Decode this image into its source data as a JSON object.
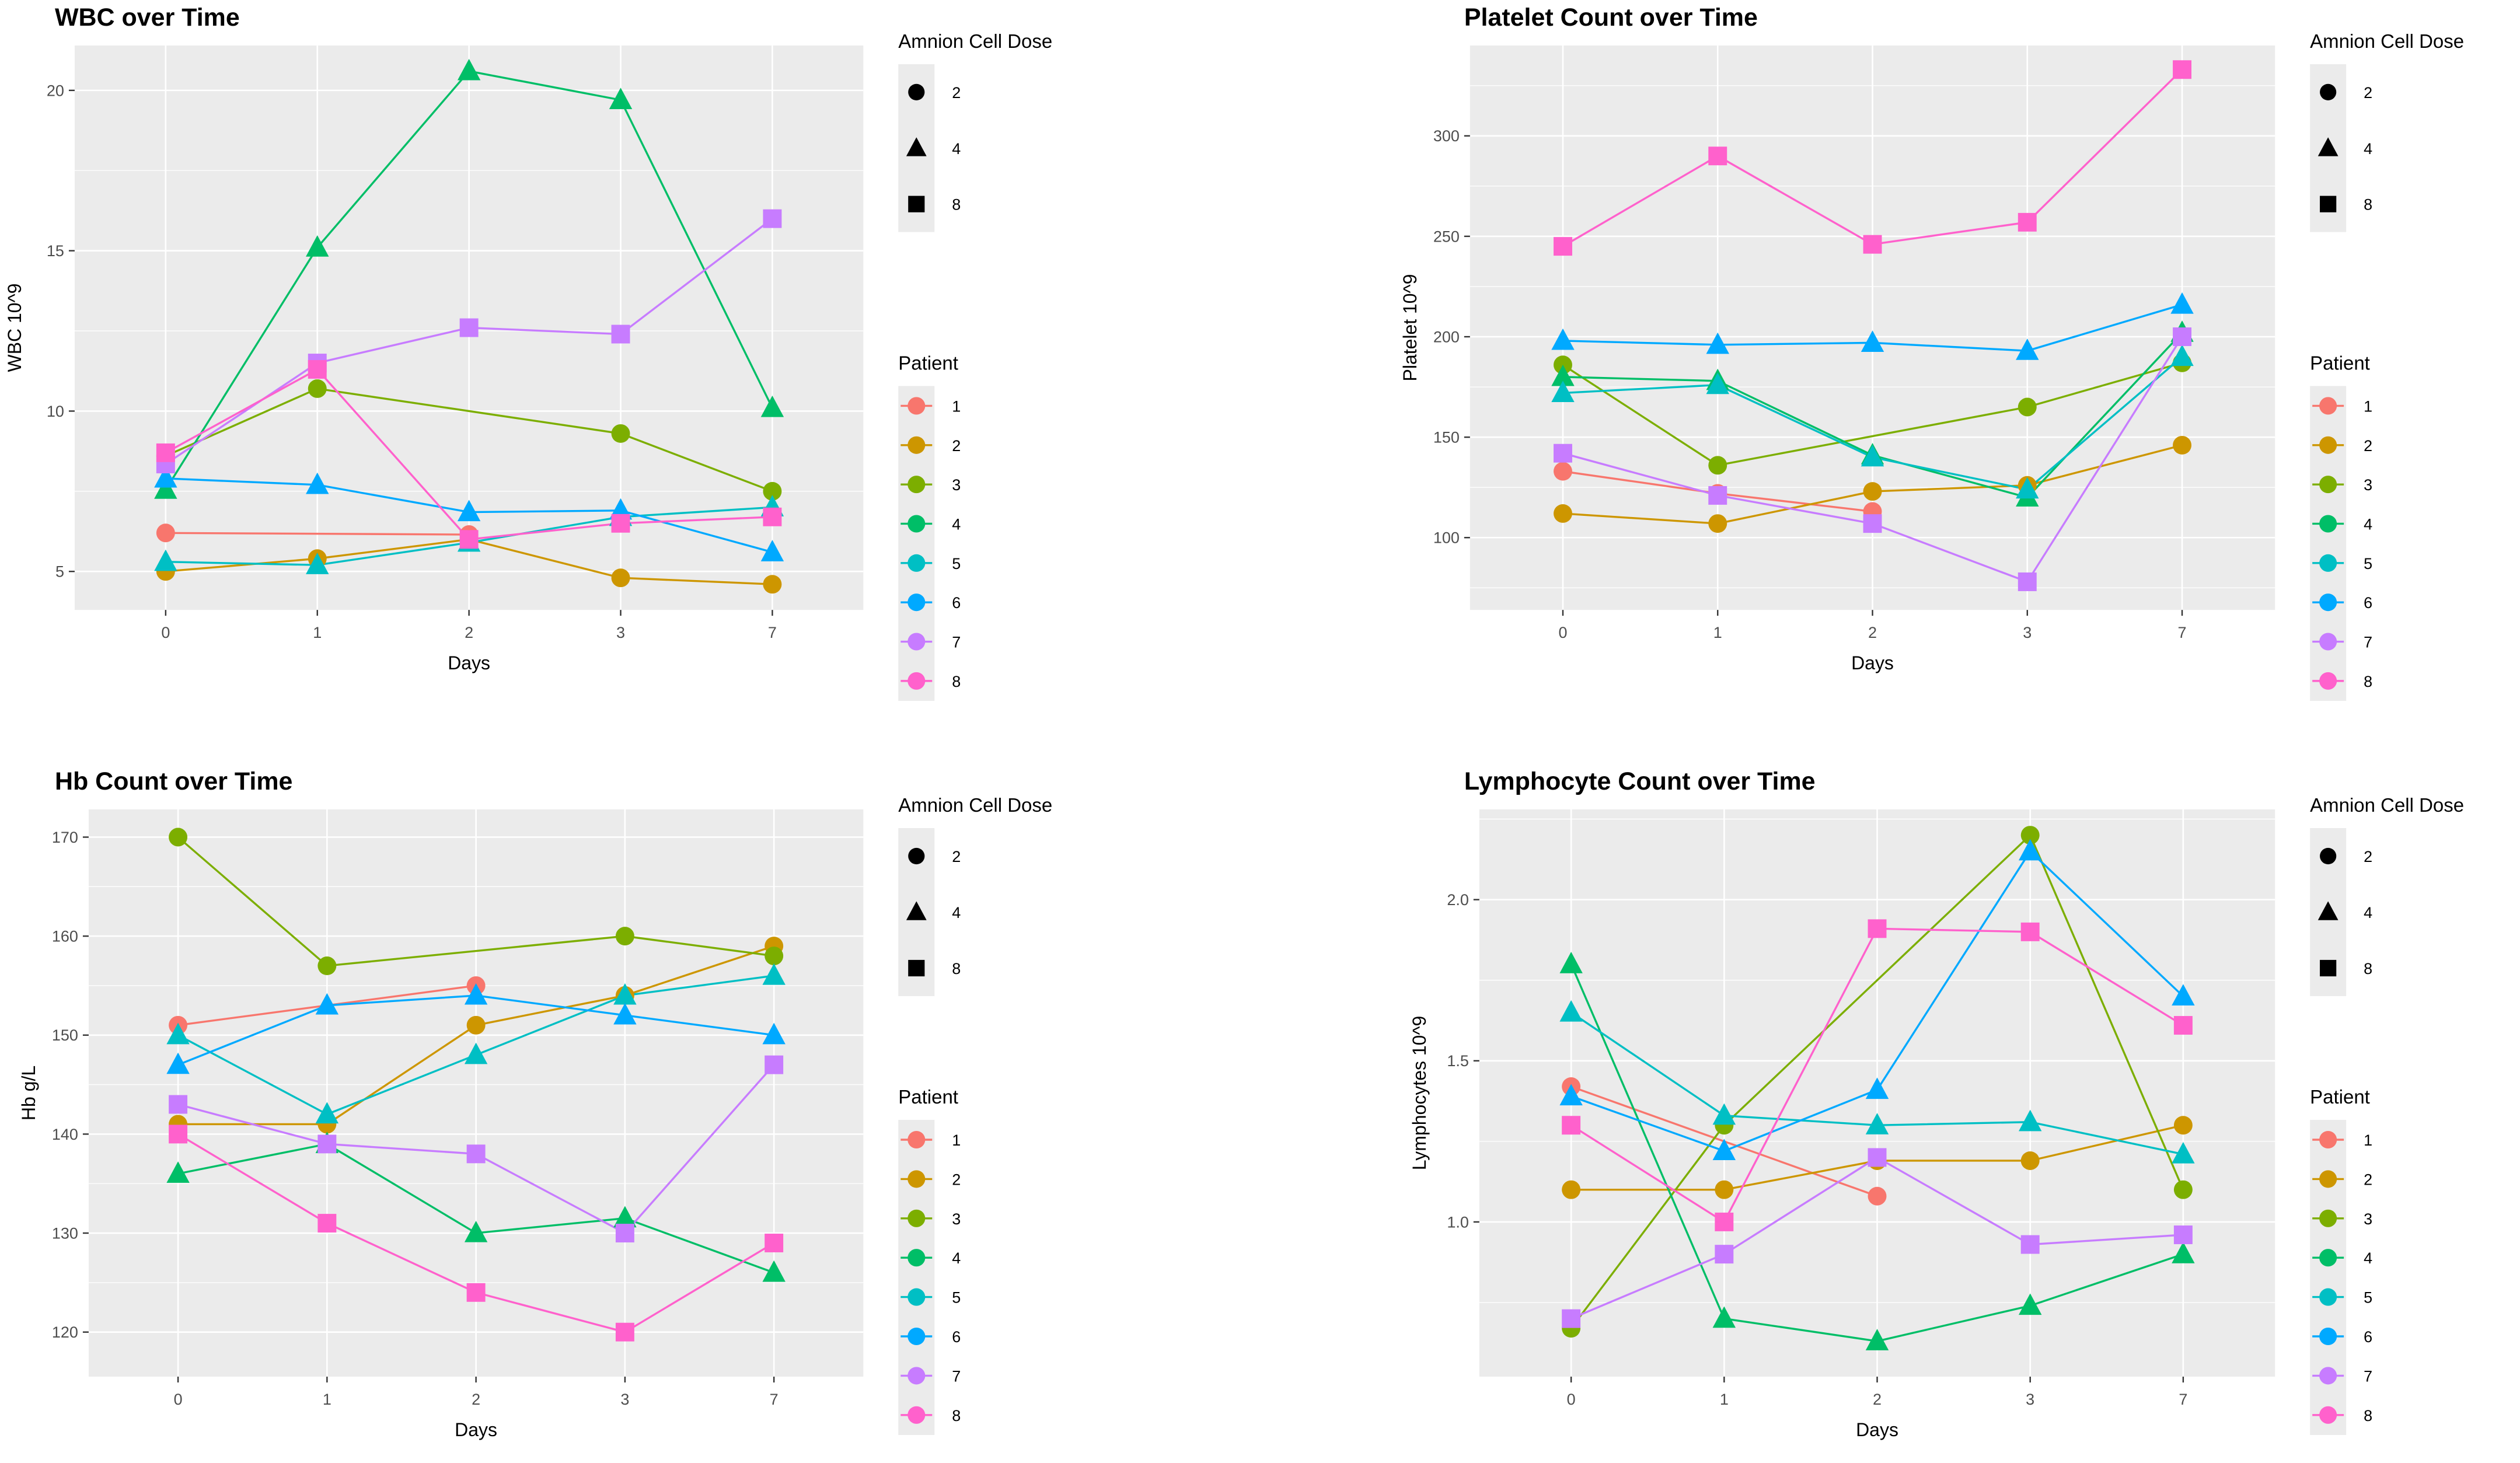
{
  "figure": {
    "background": "#FFFFFF",
    "panel_background": "#EBEBEB",
    "gridline_color": "#FFFFFF",
    "tick_text_color": "#4D4D4D",
    "title_color": "#000000"
  },
  "legend": {
    "dose": {
      "title": "Amnion Cell Dose",
      "entries": [
        {
          "shape": "circle",
          "label": "2"
        },
        {
          "shape": "triangle",
          "label": "4"
        },
        {
          "shape": "square",
          "label": "8"
        }
      ]
    },
    "patient": {
      "title": "Patient",
      "entries": [
        {
          "id": "1",
          "color": "#F8766D"
        },
        {
          "id": "2",
          "color": "#CD9600"
        },
        {
          "id": "3",
          "color": "#7CAE00"
        },
        {
          "id": "4",
          "color": "#00BE67"
        },
        {
          "id": "5",
          "color": "#00BFC4"
        },
        {
          "id": "6",
          "color": "#00A9FF"
        },
        {
          "id": "7",
          "color": "#C77CFF"
        },
        {
          "id": "8",
          "color": "#FF61CC"
        }
      ]
    }
  },
  "chart_data": [
    {
      "type": "line",
      "title": "WBC over Time",
      "xlabel": "Days",
      "ylabel": "WBC  10^9",
      "x_categories": [
        "0",
        "1",
        "2",
        "3",
        "7"
      ],
      "yticks": [
        5,
        10,
        15,
        20
      ],
      "ytick_labels": [
        "5",
        "10",
        "15",
        "20"
      ],
      "ylim": [
        3.8,
        21.4
      ],
      "grid": "white major+minor horizontal, white major vertical, grey panel",
      "legend_position": "right",
      "series": [
        {
          "patient": "1",
          "dose": 2,
          "shape": "circle",
          "color": "#F8766D",
          "values": [
            6.2,
            null,
            6.15,
            null,
            null
          ]
        },
        {
          "patient": "2",
          "dose": 2,
          "shape": "circle",
          "color": "#CD9600",
          "values": [
            5.0,
            5.4,
            6.0,
            4.8,
            4.6
          ]
        },
        {
          "patient": "3",
          "dose": 2,
          "shape": "circle",
          "color": "#7CAE00",
          "values": [
            8.6,
            10.7,
            null,
            9.3,
            7.5
          ]
        },
        {
          "patient": "4",
          "dose": 4,
          "shape": "triangle",
          "color": "#00BE67",
          "values": [
            7.55,
            15.1,
            20.6,
            19.7,
            10.1
          ]
        },
        {
          "patient": "5",
          "dose": 4,
          "shape": "triangle",
          "color": "#00BFC4",
          "values": [
            5.3,
            5.2,
            5.9,
            6.7,
            7.0
          ]
        },
        {
          "patient": "6",
          "dose": 4,
          "shape": "triangle",
          "color": "#00A9FF",
          "values": [
            7.9,
            7.7,
            6.85,
            6.9,
            5.6
          ]
        },
        {
          "patient": "7",
          "dose": 8,
          "shape": "square",
          "color": "#C77CFF",
          "values": [
            8.35,
            11.5,
            12.6,
            12.4,
            16.0
          ]
        },
        {
          "patient": "8",
          "dose": 8,
          "shape": "square",
          "color": "#FF61CC",
          "values": [
            8.7,
            11.3,
            6.0,
            6.5,
            6.7
          ]
        }
      ]
    },
    {
      "type": "line",
      "title": "Platelet Count over Time",
      "xlabel": "Days",
      "ylabel": "Platelet  10^9",
      "x_categories": [
        "0",
        "1",
        "2",
        "3",
        "7"
      ],
      "yticks": [
        100,
        150,
        200,
        250,
        300
      ],
      "ytick_labels": [
        "100",
        "150",
        "200",
        "250",
        "300"
      ],
      "ylim": [
        64,
        345
      ],
      "grid": "white major+minor horizontal, white major vertical, grey panel",
      "legend_position": "right",
      "series": [
        {
          "patient": "1",
          "dose": 2,
          "shape": "circle",
          "color": "#F8766D",
          "values": [
            133,
            122,
            113,
            null,
            null
          ]
        },
        {
          "patient": "2",
          "dose": 2,
          "shape": "circle",
          "color": "#CD9600",
          "values": [
            112,
            107,
            123,
            126,
            146
          ]
        },
        {
          "patient": "3",
          "dose": 2,
          "shape": "circle",
          "color": "#7CAE00",
          "values": [
            186,
            136,
            null,
            165,
            187
          ]
        },
        {
          "patient": "4",
          "dose": 4,
          "shape": "triangle",
          "color": "#00BE67",
          "values": [
            180,
            178,
            141,
            120,
            202
          ]
        },
        {
          "patient": "5",
          "dose": 4,
          "shape": "triangle",
          "color": "#00BFC4",
          "values": [
            172,
            176,
            140,
            124,
            190
          ]
        },
        {
          "patient": "6",
          "dose": 4,
          "shape": "triangle",
          "color": "#00A9FF",
          "values": [
            198,
            196,
            197,
            193,
            216
          ]
        },
        {
          "patient": "7",
          "dose": 8,
          "shape": "square",
          "color": "#C77CFF",
          "values": [
            142,
            121,
            107,
            78,
            200
          ]
        },
        {
          "patient": "8",
          "dose": 8,
          "shape": "square",
          "color": "#FF61CC",
          "values": [
            245,
            290,
            246,
            257,
            333
          ]
        }
      ]
    },
    {
      "type": "line",
      "title": "Hb Count over Time",
      "xlabel": "Days",
      "ylabel": "Hb g/L",
      "x_categories": [
        "0",
        "1",
        "2",
        "3",
        "7"
      ],
      "yticks": [
        120,
        130,
        140,
        150,
        160,
        170
      ],
      "ytick_labels": [
        "120",
        "130",
        "140",
        "150",
        "160",
        "170"
      ],
      "ylim": [
        115.5,
        172.8
      ],
      "grid": "white major+minor horizontal, white major vertical, grey panel",
      "legend_position": "right",
      "series": [
        {
          "patient": "1",
          "dose": 2,
          "shape": "circle",
          "color": "#F8766D",
          "values": [
            151,
            null,
            155,
            null,
            null
          ]
        },
        {
          "patient": "2",
          "dose": 2,
          "shape": "circle",
          "color": "#CD9600",
          "values": [
            141,
            141,
            151,
            154,
            159
          ]
        },
        {
          "patient": "3",
          "dose": 2,
          "shape": "circle",
          "color": "#7CAE00",
          "values": [
            170,
            157,
            null,
            160,
            158
          ]
        },
        {
          "patient": "4",
          "dose": 4,
          "shape": "triangle",
          "color": "#00BE67",
          "values": [
            136,
            139,
            130,
            131.5,
            126
          ]
        },
        {
          "patient": "5",
          "dose": 4,
          "shape": "triangle",
          "color": "#00BFC4",
          "values": [
            150,
            142,
            148,
            154,
            156
          ]
        },
        {
          "patient": "6",
          "dose": 4,
          "shape": "triangle",
          "color": "#00A9FF",
          "values": [
            147,
            153,
            154,
            152,
            150
          ]
        },
        {
          "patient": "7",
          "dose": 8,
          "shape": "square",
          "color": "#C77CFF",
          "values": [
            143,
            139,
            138,
            130,
            147
          ]
        },
        {
          "patient": "8",
          "dose": 8,
          "shape": "square",
          "color": "#FF61CC",
          "values": [
            140,
            131,
            124,
            120,
            129
          ]
        }
      ]
    },
    {
      "type": "line",
      "title": "Lymphocyte Count over Time",
      "xlabel": "Days",
      "ylabel": "Lymphocytes  10^9",
      "x_categories": [
        "0",
        "1",
        "2",
        "3",
        "7"
      ],
      "yticks": [
        1.0,
        1.5,
        2.0
      ],
      "ytick_labels": [
        "1.0",
        "1.5",
        "2.0"
      ],
      "ylim": [
        0.52,
        2.28
      ],
      "grid": "white major+minor horizontal, white major vertical, grey panel",
      "legend_position": "right",
      "series": [
        {
          "patient": "1",
          "dose": 2,
          "shape": "circle",
          "color": "#F8766D",
          "values": [
            1.42,
            null,
            1.08,
            null,
            null
          ]
        },
        {
          "patient": "2",
          "dose": 2,
          "shape": "circle",
          "color": "#CD9600",
          "values": [
            1.1,
            1.1,
            1.19,
            1.19,
            1.3
          ]
        },
        {
          "patient": "3",
          "dose": 2,
          "shape": "circle",
          "color": "#7CAE00",
          "values": [
            0.67,
            1.3,
            null,
            2.2,
            1.1
          ]
        },
        {
          "patient": "4",
          "dose": 4,
          "shape": "triangle",
          "color": "#00BE67",
          "values": [
            1.8,
            0.7,
            0.63,
            0.74,
            0.9
          ]
        },
        {
          "patient": "5",
          "dose": 4,
          "shape": "triangle",
          "color": "#00BFC4",
          "values": [
            1.65,
            1.33,
            1.3,
            1.31,
            1.21
          ]
        },
        {
          "patient": "6",
          "dose": 4,
          "shape": "triangle",
          "color": "#00A9FF",
          "values": [
            1.39,
            1.22,
            1.41,
            2.15,
            1.7
          ]
        },
        {
          "patient": "7",
          "dose": 8,
          "shape": "square",
          "color": "#C77CFF",
          "values": [
            0.7,
            0.9,
            1.2,
            0.93,
            0.96
          ]
        },
        {
          "patient": "8",
          "dose": 8,
          "shape": "square",
          "color": "#FF61CC",
          "values": [
            1.3,
            1.0,
            1.91,
            1.9,
            1.61
          ]
        }
      ]
    }
  ]
}
